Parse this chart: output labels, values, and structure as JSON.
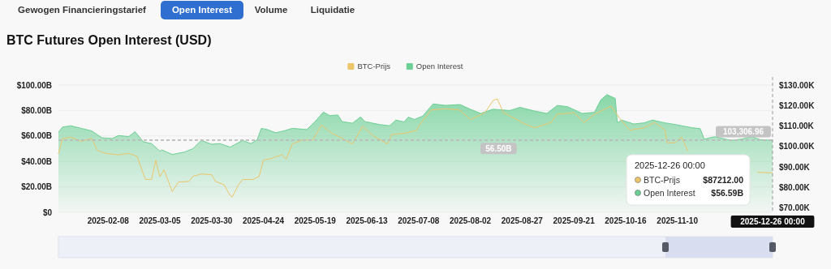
{
  "chart_data": [
    {
      "type": "other",
      "annotations": [
        "Gewogen Financieringstarief",
        "Open Interest",
        "Volume",
        "Liquidatie"
      ]
    },
    {
      "type": "area",
      "title": "BTC Futures Open Interest (USD)",
      "legend": "top",
      "grid": "y",
      "xlim": [
        "2025-01-15",
        "2025-12-26"
      ],
      "xticks": [
        "2025-02-08",
        "2025-03-05",
        "2025-03-30",
        "2025-04-24",
        "2025-05-19",
        "2025-06-13",
        "2025-07-08",
        "2025-08-02",
        "2025-08-27",
        "2025-09-21",
        "2025-10-16",
        "2025-11-10"
      ],
      "ylim": [
        0,
        100
      ],
      "yticks": [
        {
          "value": 0,
          "label": "$0"
        },
        {
          "value": 20,
          "label": "$20.00B"
        },
        {
          "value": 40,
          "label": "$40.00B"
        },
        {
          "value": 60,
          "label": "$60.00B"
        },
        {
          "value": 80,
          "label": "$80.00B"
        },
        {
          "value": 100,
          "label": "$100.00B"
        }
      ],
      "y2lim": [
        68000,
        130000
      ],
      "y2ticks": [
        {
          "value": 70000,
          "label": "$70.00K"
        },
        {
          "value": 80000,
          "label": "$80.00K"
        },
        {
          "value": 90000,
          "label": "$90.00K"
        },
        {
          "value": 100000,
          "label": "$100.00K"
        },
        {
          "value": 110000,
          "label": "$110.00K"
        },
        {
          "value": 120000,
          "label": "$120.00K"
        },
        {
          "value": 130000,
          "label": "$130.00K"
        }
      ],
      "series": [
        {
          "name": "BTC-Prijs",
          "type": "line",
          "axis": "y2",
          "color": "#ecc56b",
          "x": [
            "2025-01-15",
            "2025-01-17",
            "2025-01-21",
            "2025-01-26",
            "2025-01-31",
            "2025-02-03",
            "2025-02-07",
            "2025-02-13",
            "2025-02-18",
            "2025-02-22",
            "2025-02-26",
            "2025-03-01",
            "2025-03-03",
            "2025-03-05",
            "2025-03-07",
            "2025-03-11",
            "2025-03-14",
            "2025-03-19",
            "2025-03-21",
            "2025-03-25",
            "2025-03-30",
            "2025-04-01",
            "2025-04-05",
            "2025-04-08",
            "2025-04-09",
            "2025-04-12",
            "2025-04-14",
            "2025-04-19",
            "2025-04-22",
            "2025-04-24",
            "2025-04-27",
            "2025-05-03",
            "2025-05-05",
            "2025-05-08",
            "2025-05-13",
            "2025-05-18",
            "2025-05-22",
            "2025-05-27",
            "2025-05-31",
            "2025-06-06",
            "2025-06-11",
            "2025-06-16",
            "2025-06-23",
            "2025-06-25",
            "2025-07-02",
            "2025-07-07",
            "2025-07-08",
            "2025-07-14",
            "2025-07-21",
            "2025-07-28",
            "2025-08-02",
            "2025-08-09",
            "2025-08-13",
            "2025-08-15",
            "2025-08-18",
            "2025-08-23",
            "2025-08-28",
            "2025-09-02",
            "2025-09-10",
            "2025-09-13",
            "2025-09-21",
            "2025-09-26",
            "2025-10-01",
            "2025-10-09",
            "2025-10-13",
            "2025-10-18",
            "2025-10-25",
            "2025-10-30",
            "2025-11-04",
            "2025-11-05",
            "2025-11-09",
            "2025-11-12",
            "2025-11-15",
            "2025-11-25",
            "2025-12-19",
            "2025-12-26"
          ],
          "values": [
            96700,
            103900,
            104600,
            102600,
            104000,
            98000,
            96700,
            96000,
            96700,
            95300,
            84000,
            84000,
            93400,
            85400,
            88700,
            78100,
            82800,
            83000,
            85500,
            86700,
            86300,
            83000,
            81400,
            76100,
            75500,
            81400,
            84000,
            84000,
            85500,
            93400,
            94000,
            96000,
            94000,
            101300,
            103300,
            103300,
            110500,
            106600,
            104600,
            101300,
            109900,
            105300,
            101300,
            105900,
            106600,
            108000,
            109900,
            117800,
            118500,
            117800,
            113200,
            116500,
            122500,
            123300,
            116500,
            114000,
            111200,
            109200,
            111800,
            115800,
            116500,
            111800,
            115800,
            119800,
            114000,
            108000,
            109200,
            111800,
            108000,
            101900,
            101900,
            104600,
            98000,
            null,
            87500,
            87212
          ]
        },
        {
          "name": "Open Interest",
          "type": "area",
          "color": "#6ccf94",
          "x": [
            "2025-01-15",
            "2025-01-17",
            "2025-01-21",
            "2025-01-26",
            "2025-01-31",
            "2025-02-05",
            "2025-02-10",
            "2025-02-13",
            "2025-02-18",
            "2025-02-21",
            "2025-02-25",
            "2025-03-01",
            "2025-03-05",
            "2025-03-06",
            "2025-03-11",
            "2025-03-17",
            "2025-03-21",
            "2025-03-25",
            "2025-03-30",
            "2025-04-03",
            "2025-04-08",
            "2025-04-10",
            "2025-04-14",
            "2025-04-18",
            "2025-04-21",
            "2025-04-23",
            "2025-04-26",
            "2025-04-30",
            "2025-05-04",
            "2025-05-08",
            "2025-05-15",
            "2025-05-19",
            "2025-05-23",
            "2025-05-26",
            "2025-05-30",
            "2025-06-01",
            "2025-06-06",
            "2025-06-10",
            "2025-06-12",
            "2025-06-19",
            "2025-06-24",
            "2025-06-27",
            "2025-07-01",
            "2025-07-03",
            "2025-07-06",
            "2025-07-10",
            "2025-07-15",
            "2025-07-21",
            "2025-07-28",
            "2025-08-02",
            "2025-08-07",
            "2025-08-13",
            "2025-08-21",
            "2025-08-26",
            "2025-09-02",
            "2025-09-08",
            "2025-09-13",
            "2025-09-18",
            "2025-09-25",
            "2025-10-01",
            "2025-10-04",
            "2025-10-07",
            "2025-10-11",
            "2025-10-12",
            "2025-10-14",
            "2025-10-20",
            "2025-10-25",
            "2025-10-29",
            "2025-11-04",
            "2025-11-09",
            "2025-11-17",
            "2025-11-21",
            "2025-11-23",
            "2025-11-28",
            "2025-12-06",
            "2025-12-11",
            "2025-12-16",
            "2025-12-20",
            "2025-12-26"
          ],
          "values": [
            62.9,
            67,
            68,
            66,
            64,
            58.6,
            58,
            60.3,
            59.5,
            63.3,
            55.4,
            54,
            48,
            49,
            45.4,
            47.4,
            50,
            56.5,
            53.5,
            54,
            51.2,
            53,
            56.5,
            54,
            57,
            66,
            65,
            62.5,
            64,
            66,
            65,
            71.3,
            78.8,
            76,
            76.5,
            71.3,
            70,
            75,
            71.3,
            69,
            68,
            72.5,
            71,
            74.8,
            73,
            75.6,
            85.2,
            84,
            84.7,
            81,
            77.7,
            81,
            80,
            82.5,
            79.6,
            77.7,
            84,
            83,
            77.7,
            78.6,
            88.3,
            92.5,
            89.5,
            70.3,
            72.5,
            69.4,
            70.3,
            72.5,
            70.3,
            69,
            66.5,
            65.8,
            57.5,
            59.4,
            56.5,
            57.5,
            59.4,
            57,
            56.59
          ]
        }
      ],
      "ref_lines": [
        {
          "axis": "y",
          "value": 56.5,
          "label": "56.50B",
          "line_style": "dashed"
        },
        {
          "axis": "y2",
          "value": 103306.96,
          "label": "103,306.96",
          "line_style": "dashed"
        },
        {
          "axis": "x",
          "value": "2025-12-26",
          "label": "2025-12-26 00:00",
          "line_style": "dashed"
        }
      ],
      "annotations": [
        "2025-12-26 00:00",
        "BTC-Prijs $87212.00",
        "Open Interest $56.59B"
      ]
    }
  ]
}
